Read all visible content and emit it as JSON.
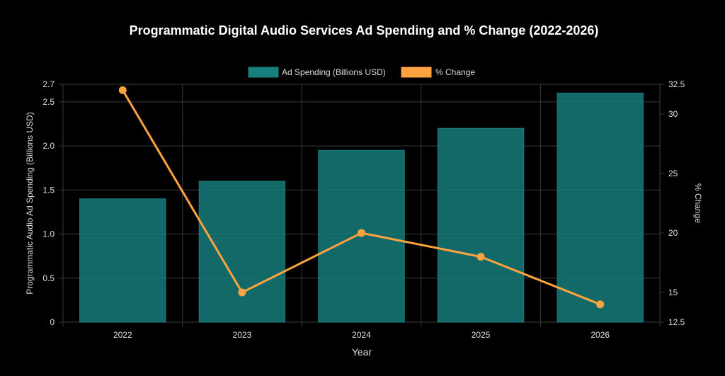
{
  "chart_data": {
    "type": "bar",
    "title": "Programmatic Digital Audio Services Ad Spending and % Change (2022-2026)",
    "xlabel": "Year",
    "ylabel": "Programmatic Audio Ad Spending (Billions USD)",
    "y2label": "% Change",
    "categories": [
      "2022",
      "2023",
      "2024",
      "2025",
      "2026"
    ],
    "series": [
      {
        "name": "Ad Spending (Billions USD)",
        "type": "bar",
        "axis": "left",
        "color": "#17807e",
        "values": [
          1.4,
          1.6,
          1.95,
          2.2,
          2.6
        ]
      },
      {
        "name": "% Change",
        "type": "line",
        "axis": "right",
        "color": "#ffa340",
        "values": [
          32.0,
          15.0,
          20.0,
          18.0,
          14.0
        ]
      }
    ],
    "ylim": [
      0,
      2.7
    ],
    "yticks": [
      "0",
      "0.5",
      "1.0",
      "1.5",
      "2.0",
      "2.5",
      "2.7"
    ],
    "y2lim": [
      12.5,
      32.5
    ],
    "y2ticks": [
      "12.5",
      "15",
      "20",
      "25",
      "30",
      "32.5"
    ],
    "legend": "top-center",
    "grid": true
  }
}
